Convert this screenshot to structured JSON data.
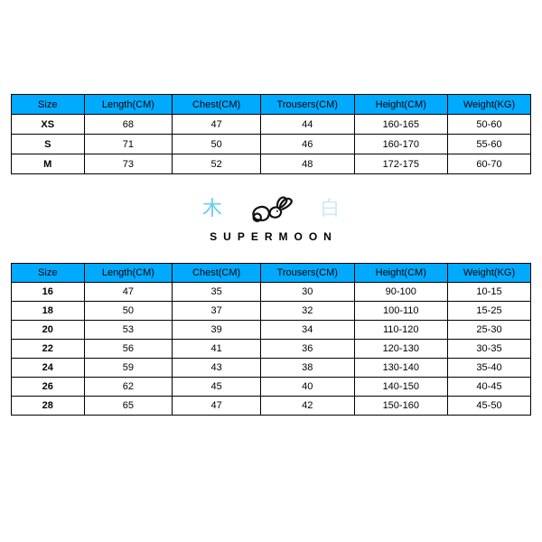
{
  "colors": {
    "header_bg": "#00aaff",
    "header_text": "#000000",
    "cell_bg": "#ffffff",
    "cell_text": "#000000",
    "border": "#000000",
    "cjk_left": "#66ccee",
    "cjk_right": "#cfe9f2",
    "rabbit_stroke": "#111111"
  },
  "fonts": {
    "cell_fontsize": 11,
    "header_fontsize": 11,
    "brand_fontsize": 12,
    "brand_letterspacing": 7,
    "cjk_fontsize": 22
  },
  "table_adult": {
    "type": "table",
    "columns": [
      "Size",
      "Length(CM)",
      "Chest(CM)",
      "Trousers(CM)",
      "Height(CM)",
      "Weight(KG)"
    ],
    "col_widths_pct": [
      14,
      17,
      17,
      18,
      18,
      16
    ],
    "rows": [
      [
        "XS",
        "68",
        "47",
        "44",
        "160-165",
        "50-60"
      ],
      [
        "S",
        "71",
        "50",
        "46",
        "160-170",
        "55-60"
      ],
      [
        "M",
        "73",
        "52",
        "48",
        "172-175",
        "60-70"
      ]
    ]
  },
  "logo": {
    "char_left": "木",
    "char_right": "白",
    "brand_text": "SUPERMOON"
  },
  "table_kids": {
    "type": "table",
    "columns": [
      "Size",
      "Length(CM)",
      "Chest(CM)",
      "Trousers(CM)",
      "Height(CM)",
      "Weight(KG)"
    ],
    "col_widths_pct": [
      14,
      17,
      17,
      18,
      18,
      16
    ],
    "rows": [
      [
        "16",
        "47",
        "35",
        "30",
        "90-100",
        "10-15"
      ],
      [
        "18",
        "50",
        "37",
        "32",
        "100-110",
        "15-25"
      ],
      [
        "20",
        "53",
        "39",
        "34",
        "110-120",
        "25-30"
      ],
      [
        "22",
        "56",
        "41",
        "36",
        "120-130",
        "30-35"
      ],
      [
        "24",
        "59",
        "43",
        "38",
        "130-140",
        "35-40"
      ],
      [
        "26",
        "62",
        "45",
        "40",
        "140-150",
        "40-45"
      ],
      [
        "28",
        "65",
        "47",
        "42",
        "150-160",
        "45-50"
      ]
    ]
  }
}
